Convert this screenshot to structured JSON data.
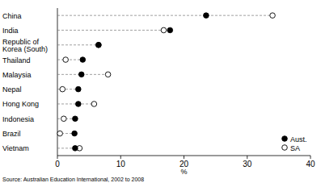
{
  "chart_data": {
    "type": "scatter",
    "orientation": "horizontal",
    "categories": [
      "China",
      "India",
      "Republic of Korea (South)",
      "Thailand",
      "Malaysia",
      "Nepal",
      "Hong Kong",
      "Indonesia",
      "Brazil",
      "Vietnam"
    ],
    "series": [
      {
        "name": "Aust.",
        "color": "#000000",
        "marker": "filled-circle",
        "values": [
          23.5,
          17.8,
          6.5,
          4.0,
          3.8,
          3.3,
          3.3,
          2.8,
          2.7,
          2.8
        ]
      },
      {
        "name": "SA",
        "color": "#000000",
        "marker": "open-circle",
        "values": [
          34.0,
          16.8,
          6.5,
          1.3,
          8.0,
          0.8,
          5.8,
          1.0,
          0.4,
          3.5
        ]
      }
    ],
    "x_label": "%",
    "xlim": [
      0,
      40
    ],
    "xticks": [
      0,
      10,
      20,
      30,
      40
    ],
    "legend": "bottom-right",
    "source": "Source: Australian Education International, 2002 to 2008"
  }
}
